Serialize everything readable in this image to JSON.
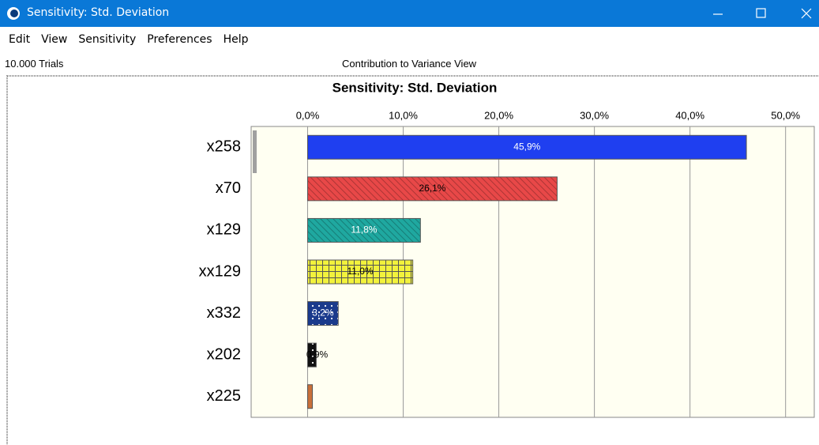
{
  "window": {
    "title": "Sensitivity: Std. Deviation",
    "menu": [
      "Edit",
      "View",
      "Sensitivity",
      "Preferences",
      "Help"
    ]
  },
  "status": {
    "trials": "10.000 Trials",
    "view": "Contribution to Variance View"
  },
  "chart_data": {
    "type": "bar",
    "orientation": "horizontal",
    "title": "Sensitivity: Std. Deviation",
    "categories": [
      "x258",
      "x70",
      "x129",
      "xx129",
      "x332",
      "x202",
      "x225"
    ],
    "values": [
      45.9,
      26.1,
      11.8,
      11.0,
      3.2,
      0.9,
      0.5
    ],
    "value_labels": [
      "45,9%",
      "26,1%",
      "11,8%",
      "11,0%",
      "3,2%",
      "0,9%",
      null
    ],
    "colors": [
      "#1f3ff0",
      "#e84848",
      "#1fa8a0",
      "#f2f23c",
      "#1a3a8c",
      "#111111",
      "#c8703a"
    ],
    "xlim": [
      -5,
      53
    ],
    "xticks": [
      {
        "value": 0,
        "label": "0,0%"
      },
      {
        "value": 10,
        "label": "10,0%"
      },
      {
        "value": 20,
        "label": "20,0%"
      },
      {
        "value": 30,
        "label": "30,0%"
      },
      {
        "value": 40,
        "label": "40,0%"
      },
      {
        "value": 50,
        "label": "50,0%"
      }
    ],
    "grid": true
  }
}
